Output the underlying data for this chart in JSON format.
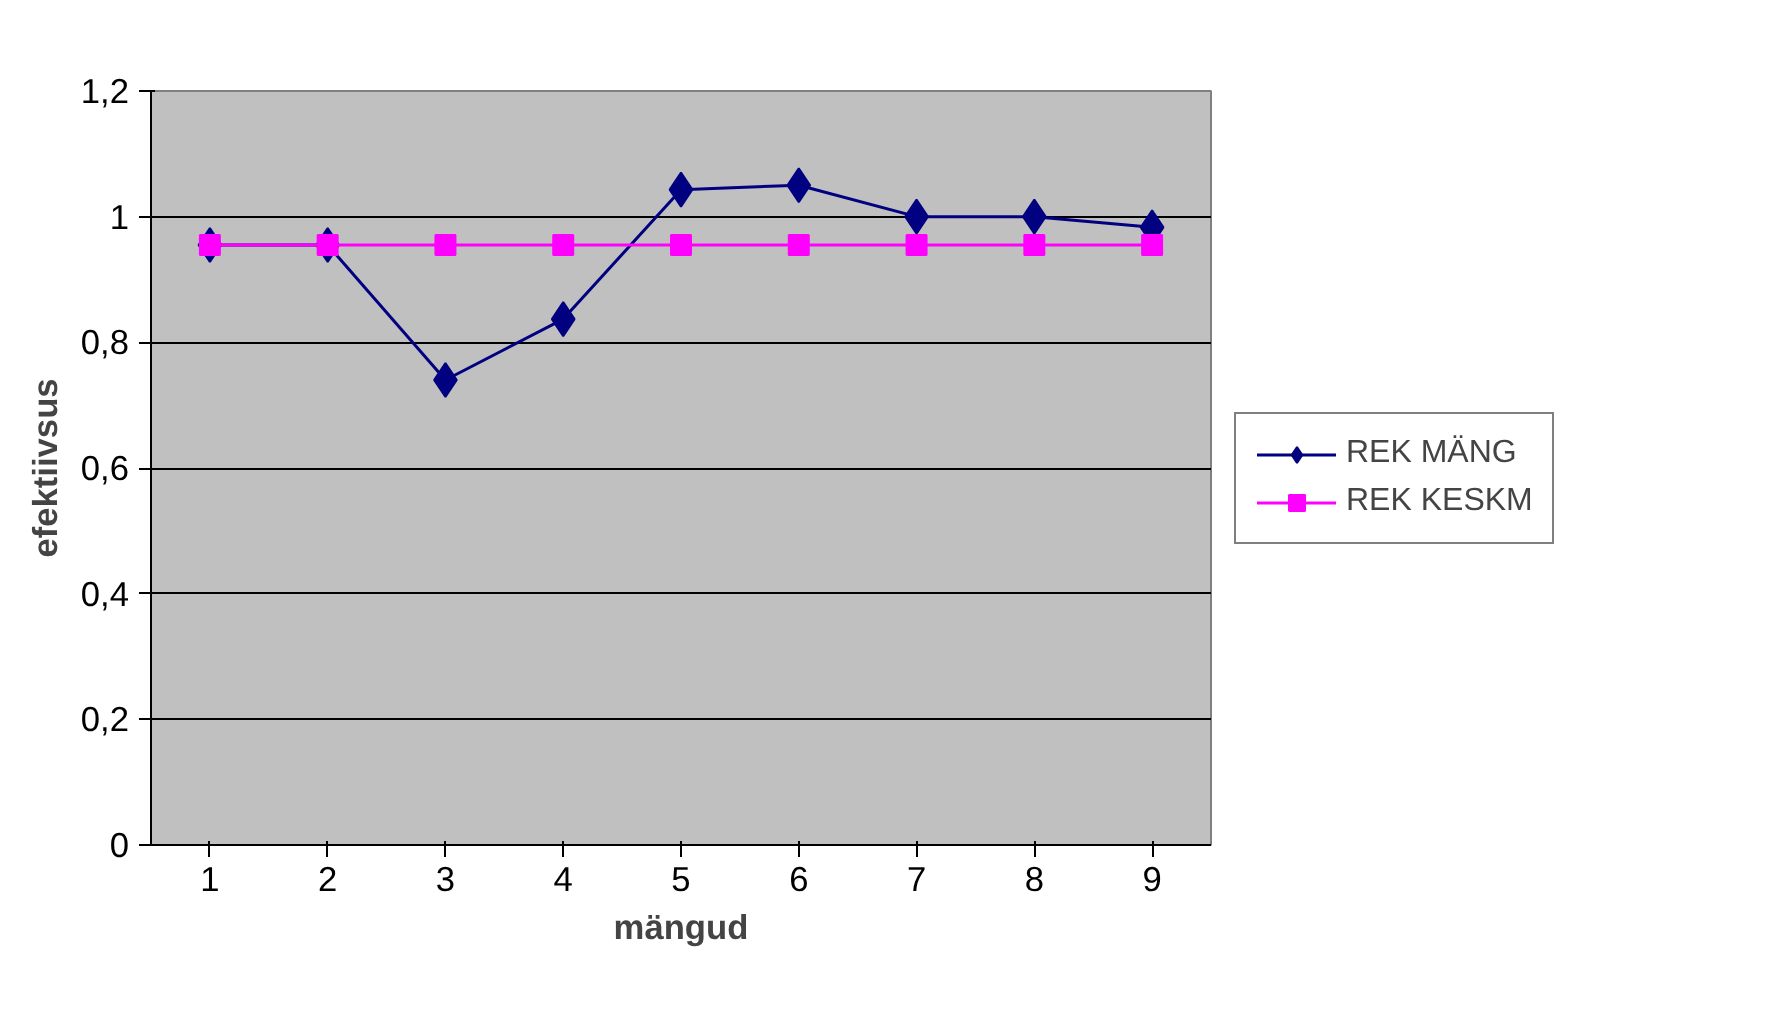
{
  "chart_data": {
    "type": "line",
    "xlabel": "mängud",
    "ylabel": "efektiivsus",
    "categories": [
      "1",
      "2",
      "3",
      "4",
      "5",
      "6",
      "7",
      "8",
      "9"
    ],
    "series": [
      {
        "name": "REK MÄNG",
        "color": "#000080",
        "marker": "diamond",
        "values": [
          0.955,
          0.955,
          0.74,
          0.837,
          1.043,
          1.05,
          1.0,
          1.0,
          0.983
        ]
      },
      {
        "name": "REK KESKM",
        "color": "#ff00ff",
        "marker": "square",
        "values": [
          0.955,
          0.955,
          0.955,
          0.955,
          0.955,
          0.955,
          0.955,
          0.955,
          0.955
        ]
      }
    ],
    "ylim": [
      0,
      1.2
    ],
    "yticks": [
      {
        "value": 0,
        "label": "0"
      },
      {
        "value": 0.2,
        "label": "0,2"
      },
      {
        "value": 0.4,
        "label": "0,4"
      },
      {
        "value": 0.6,
        "label": "0,6"
      },
      {
        "value": 0.8,
        "label": "0,8"
      },
      {
        "value": 1,
        "label": "1"
      },
      {
        "value": 1.2,
        "label": "1,2"
      }
    ],
    "grid": "y",
    "legend": "right",
    "line_style": "solid"
  }
}
